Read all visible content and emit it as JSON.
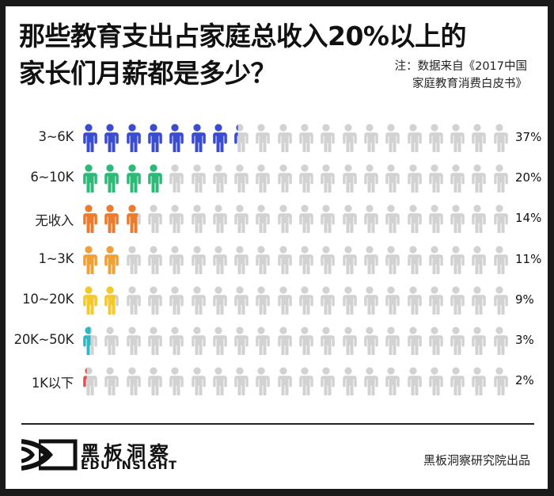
{
  "header": {
    "title_line1": "那些教育支出占家庭总收入20%以上的",
    "title_line2": "家长们月薪都是多少？",
    "note_line1": "注：数据来自《2017中国",
    "note_line2": "家庭教育消费白皮书》"
  },
  "icons": {
    "person_icon": "person-icon",
    "icons_per_row": 20,
    "percent_per_icon": 5,
    "empty_color": "#d2d2d2"
  },
  "rows": [
    {
      "label": "3~6K",
      "value": 37,
      "pct_label": "37%",
      "color": "#3a4dd0"
    },
    {
      "label": "6~10K",
      "value": 20,
      "pct_label": "20%",
      "color": "#2dba78"
    },
    {
      "label": "无收入",
      "value": 14,
      "pct_label": "14%",
      "color": "#ec7b2c"
    },
    {
      "label": "1~3K",
      "value": 11,
      "pct_label": "11%",
      "color": "#f0a136"
    },
    {
      "label": "10~20K",
      "value": 9,
      "pct_label": "9%",
      "color": "#f5c82b"
    },
    {
      "label": "20K~50K",
      "value": 3,
      "pct_label": "3%",
      "color": "#2db8c6"
    },
    {
      "label": "1K以下",
      "value": 2,
      "pct_label": "2%",
      "color": "#e0504e"
    }
  ],
  "footer": {
    "logo_cn": "黑板洞察",
    "logo_en": "EDU INSIGHT",
    "credit": "黑板洞察研究院出品"
  },
  "chart_data": {
    "type": "bar",
    "subtype": "pictogram",
    "title": "那些教育支出占家庭总收入20%以上的家长们月薪都是多少？",
    "note": "注：数据来自《2017中国家庭教育消费白皮书》",
    "categories": [
      "3~6K",
      "6~10K",
      "无收入",
      "1~3K",
      "10~20K",
      "20K~50K",
      "1K以下"
    ],
    "values": [
      37,
      20,
      14,
      11,
      9,
      3,
      2
    ],
    "unit": "%",
    "xlabel": "",
    "ylabel": "",
    "orientation": "horizontal",
    "icons_per_row": 20,
    "percent_per_icon": 5,
    "colors": [
      "#3a4dd0",
      "#2dba78",
      "#ec7b2c",
      "#f0a136",
      "#f5c82b",
      "#2db8c6",
      "#e0504e"
    ],
    "legend": null,
    "grid": false
  }
}
